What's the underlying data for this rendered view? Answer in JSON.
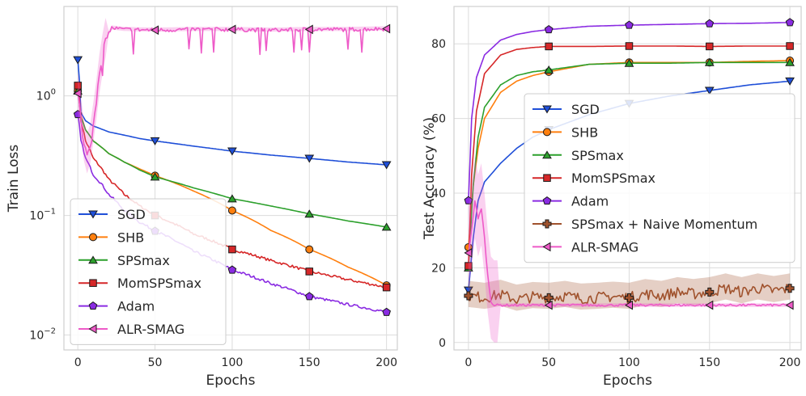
{
  "chart_data": [
    {
      "type": "line",
      "yscale": "log",
      "xlabel": "Epochs",
      "ylabel": "Train Loss",
      "xlim": [
        -9,
        207
      ],
      "ylim": [
        0.0075,
        5.6
      ],
      "xticks": [
        0,
        50,
        100,
        150,
        200
      ],
      "xtick_labels": [
        "0",
        "50",
        "100",
        "150",
        "200"
      ],
      "yticks": [
        1,
        0.1,
        0.01
      ],
      "ytick_labels": [
        "10^0",
        "10^-1",
        "10^-2"
      ],
      "grid": true,
      "legend_position": "lower-left",
      "series": [
        {
          "name": "SGD",
          "color": "#1f4fd8",
          "marker": "triangle-down",
          "points": [
            [
              0,
              2.0
            ],
            [
              2,
              0.72
            ],
            [
              5,
              0.62
            ],
            [
              10,
              0.56
            ],
            [
              20,
              0.5
            ],
            [
              30,
              0.47
            ],
            [
              40,
              0.44
            ],
            [
              50,
              0.42
            ],
            [
              75,
              0.38
            ],
            [
              100,
              0.345
            ],
            [
              125,
              0.32
            ],
            [
              150,
              0.3
            ],
            [
              175,
              0.28
            ],
            [
              200,
              0.265
            ]
          ]
        },
        {
          "name": "SHB",
          "color": "#ff7f0e",
          "marker": "circle",
          "points": [
            [
              0,
              1.1
            ],
            [
              2,
              0.68
            ],
            [
              5,
              0.52
            ],
            [
              10,
              0.42
            ],
            [
              20,
              0.33
            ],
            [
              30,
              0.28
            ],
            [
              40,
              0.245
            ],
            [
              50,
              0.215
            ],
            [
              75,
              0.16
            ],
            [
              100,
              0.11
            ],
            [
              125,
              0.075
            ],
            [
              150,
              0.052
            ],
            [
              175,
              0.037
            ],
            [
              200,
              0.026
            ]
          ]
        },
        {
          "name": "SPSmax",
          "color": "#2ca02c",
          "marker": "triangle-up",
          "points": [
            [
              0,
              1.1
            ],
            [
              2,
              0.66
            ],
            [
              5,
              0.52
            ],
            [
              10,
              0.42
            ],
            [
              20,
              0.33
            ],
            [
              30,
              0.28
            ],
            [
              40,
              0.24
            ],
            [
              50,
              0.21
            ],
            [
              75,
              0.17
            ],
            [
              100,
              0.138
            ],
            [
              125,
              0.12
            ],
            [
              150,
              0.103
            ],
            [
              175,
              0.09
            ],
            [
              200,
              0.08
            ]
          ]
        },
        {
          "name": "MomSPSmax",
          "color": "#d62728",
          "marker": "square",
          "points": [
            [
              0,
              1.22
            ],
            [
              2,
              0.62
            ],
            [
              5,
              0.42
            ],
            [
              10,
              0.3
            ],
            [
              20,
              0.2
            ],
            [
              30,
              0.15
            ],
            [
              40,
              0.12
            ],
            [
              50,
              0.1
            ],
            [
              75,
              0.07
            ],
            [
              100,
              0.052
            ],
            [
              125,
              0.042
            ],
            [
              150,
              0.034
            ],
            [
              175,
              0.029
            ],
            [
              200,
              0.025
            ]
          ]
        },
        {
          "name": "Adam",
          "color": "#8a2be2",
          "marker": "pentagon",
          "points": [
            [
              0,
              0.7
            ],
            [
              2,
              0.42
            ],
            [
              5,
              0.3
            ],
            [
              10,
              0.22
            ],
            [
              20,
              0.15
            ],
            [
              30,
              0.11
            ],
            [
              40,
              0.088
            ],
            [
              50,
              0.074
            ],
            [
              75,
              0.05
            ],
            [
              100,
              0.035
            ],
            [
              125,
              0.027
            ],
            [
              150,
              0.021
            ],
            [
              175,
              0.018
            ],
            [
              200,
              0.0155
            ]
          ]
        },
        {
          "name": "ALR-SMAG",
          "color": "#ee5ac8",
          "marker": "triangle-left",
          "points": [
            [
              0,
              1.05
            ],
            [
              3,
              0.45
            ],
            [
              6,
              0.32
            ],
            [
              9,
              0.42
            ],
            [
              12,
              0.9
            ],
            [
              15,
              1.8
            ],
            [
              18,
              3.0
            ],
            [
              22,
              3.7
            ],
            [
              30,
              3.6
            ],
            [
              50,
              3.55
            ],
            [
              75,
              3.6
            ],
            [
              100,
              3.6
            ],
            [
              125,
              3.55
            ],
            [
              150,
              3.6
            ],
            [
              175,
              3.6
            ],
            [
              200,
              3.65
            ]
          ]
        }
      ]
    },
    {
      "type": "line",
      "xlabel": "Epochs",
      "ylabel": "Test Accuracy  (%)",
      "xlim": [
        -9,
        207
      ],
      "ylim": [
        -2,
        90
      ],
      "xticks": [
        0,
        50,
        100,
        150,
        200
      ],
      "xtick_labels": [
        "0",
        "50",
        "100",
        "150",
        "200"
      ],
      "yticks": [
        0,
        20,
        40,
        60,
        80
      ],
      "ytick_labels": [
        "0",
        "20",
        "40",
        "60",
        "80"
      ],
      "grid": true,
      "legend_position": "center-right",
      "series": [
        {
          "name": "SGD",
          "color": "#1f4fd8",
          "marker": "triangle-down",
          "points": [
            [
              0,
              14
            ],
            [
              3,
              28
            ],
            [
              6,
              38
            ],
            [
              10,
              43
            ],
            [
              20,
              48
            ],
            [
              30,
              52
            ],
            [
              40,
              55
            ],
            [
              50,
              57
            ],
            [
              75,
              61
            ],
            [
              100,
              64
            ],
            [
              125,
              66
            ],
            [
              150,
              67.5
            ],
            [
              175,
              69
            ],
            [
              200,
              70
            ]
          ]
        },
        {
          "name": "SHB",
          "color": "#ff7f0e",
          "marker": "circle",
          "points": [
            [
              0,
              25.5
            ],
            [
              3,
              42
            ],
            [
              6,
              52
            ],
            [
              10,
              60
            ],
            [
              20,
              67
            ],
            [
              30,
              70
            ],
            [
              40,
              71.5
            ],
            [
              50,
              72.5
            ],
            [
              75,
              74.5
            ],
            [
              100,
              75
            ],
            [
              125,
              75
            ],
            [
              150,
              75
            ],
            [
              175,
              75.3
            ],
            [
              200,
              75.5
            ]
          ]
        },
        {
          "name": "SPSmax",
          "color": "#2ca02c",
          "marker": "triangle-up",
          "points": [
            [
              0,
              20
            ],
            [
              3,
              42
            ],
            [
              6,
              55
            ],
            [
              10,
              63
            ],
            [
              20,
              69
            ],
            [
              30,
              71.5
            ],
            [
              40,
              72.5
            ],
            [
              50,
              73
            ],
            [
              75,
              74.5
            ],
            [
              100,
              74.8
            ],
            [
              125,
              74.8
            ],
            [
              150,
              75
            ],
            [
              175,
              75
            ],
            [
              200,
              75
            ]
          ]
        },
        {
          "name": "MomSPSmax",
          "color": "#d62728",
          "marker": "square",
          "points": [
            [
              0,
              20.5
            ],
            [
              2,
              45
            ],
            [
              5,
              62
            ],
            [
              10,
              72
            ],
            [
              20,
              77
            ],
            [
              30,
              78.5
            ],
            [
              40,
              79
            ],
            [
              50,
              79.3
            ],
            [
              75,
              79.3
            ],
            [
              100,
              79.4
            ],
            [
              125,
              79.4
            ],
            [
              150,
              79.3
            ],
            [
              175,
              79.4
            ],
            [
              200,
              79.4
            ]
          ]
        },
        {
          "name": "Adam",
          "color": "#8a2be2",
          "marker": "pentagon",
          "points": [
            [
              0,
              38
            ],
            [
              2,
              60
            ],
            [
              5,
              71
            ],
            [
              10,
              77
            ],
            [
              20,
              81
            ],
            [
              30,
              82.5
            ],
            [
              40,
              83.3
            ],
            [
              50,
              83.8
            ],
            [
              75,
              84.7
            ],
            [
              100,
              85
            ],
            [
              125,
              85.2
            ],
            [
              150,
              85.4
            ],
            [
              175,
              85.5
            ],
            [
              200,
              85.7
            ]
          ]
        },
        {
          "name": "SPSmax + Naive Momentum",
          "color": "#a0522d",
          "marker": "plus",
          "points": [
            [
              0,
              12.5
            ],
            [
              10,
              12
            ],
            [
              20,
              12.8
            ],
            [
              30,
              11.5
            ],
            [
              40,
              12.2
            ],
            [
              50,
              12
            ],
            [
              60,
              12.5
            ],
            [
              70,
              11.8
            ],
            [
              80,
              12
            ],
            [
              90,
              12.3
            ],
            [
              100,
              12
            ],
            [
              110,
              13
            ],
            [
              120,
              12.5
            ],
            [
              130,
              13.5
            ],
            [
              140,
              13
            ],
            [
              150,
              13.5
            ],
            [
              160,
              14.5
            ],
            [
              170,
              13.5
            ],
            [
              180,
              14.5
            ],
            [
              190,
              13.8
            ],
            [
              200,
              14.5
            ]
          ]
        },
        {
          "name": "ALR-SMAG",
          "color": "#ee5ac8",
          "marker": "triangle-left",
          "points": [
            [
              0,
              24
            ],
            [
              2,
              30
            ],
            [
              4,
              38
            ],
            [
              6,
              33
            ],
            [
              8,
              36
            ],
            [
              10,
              28
            ],
            [
              12,
              18
            ],
            [
              14,
              11
            ],
            [
              16,
              10
            ],
            [
              50,
              10
            ],
            [
              100,
              10
            ],
            [
              150,
              10
            ],
            [
              200,
              10
            ]
          ]
        }
      ]
    }
  ]
}
